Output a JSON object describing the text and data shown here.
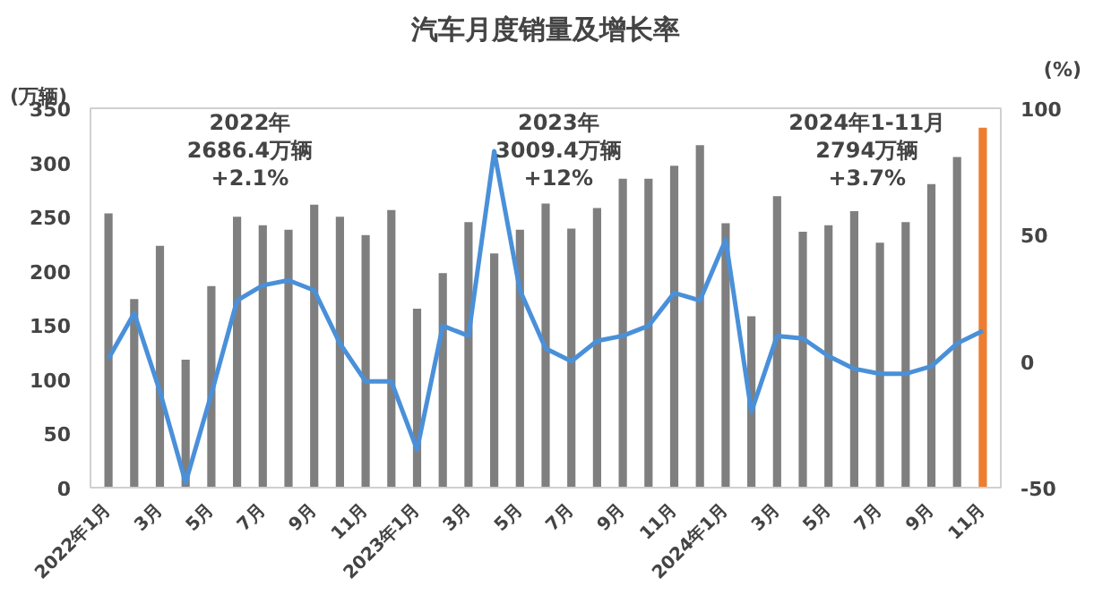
{
  "chart_data": {
    "type": "bar",
    "title": "汽车月度销量及增长率",
    "ylabel": "(万辆)",
    "y2label": "(%)",
    "categories": [
      "2022年1月",
      null,
      "3月",
      null,
      "5月",
      null,
      "7月",
      null,
      "9月",
      null,
      "11月",
      null,
      "2023年1月",
      null,
      "3月",
      null,
      "5月",
      null,
      "7月",
      null,
      "9月",
      null,
      "11月",
      null,
      "2024年1月",
      null,
      "3月",
      null,
      "5月",
      null,
      "7月",
      null,
      "9月",
      null,
      "11月"
    ],
    "series": [
      {
        "color": "#7f7f7f",
        "colors": [
          "#7f7f7f",
          "#7f7f7f",
          "#7f7f7f",
          "#7f7f7f",
          "#7f7f7f",
          "#7f7f7f",
          "#7f7f7f",
          "#7f7f7f",
          "#7f7f7f",
          "#7f7f7f",
          "#7f7f7f",
          "#7f7f7f",
          "#7f7f7f",
          "#7f7f7f",
          "#7f7f7f",
          "#7f7f7f",
          "#7f7f7f",
          "#7f7f7f",
          "#7f7f7f",
          "#7f7f7f",
          "#7f7f7f",
          "#7f7f7f",
          "#7f7f7f",
          "#7f7f7f",
          "#7f7f7f",
          "#7f7f7f",
          "#7f7f7f",
          "#7f7f7f",
          "#7f7f7f",
          "#7f7f7f",
          "#7f7f7f",
          "#7f7f7f",
          "#7f7f7f",
          "#7f7f7f",
          "#ed7d31"
        ],
        "values": [
          253,
          174,
          223,
          118,
          186,
          250,
          242,
          238,
          261,
          250,
          233,
          256,
          165,
          198,
          245,
          216,
          238,
          262,
          239,
          258,
          285,
          285,
          297,
          316,
          244,
          158,
          269,
          236,
          242,
          255,
          226,
          245,
          280,
          305,
          332
        ]
      },
      {
        "type": "line",
        "axis": "y2",
        "color": "#4a90d9",
        "values": [
          1,
          19,
          -12,
          -48,
          -13,
          24,
          30,
          32,
          28,
          7,
          -8,
          -8,
          -35,
          14,
          10,
          83,
          28,
          5,
          0,
          8,
          10,
          14,
          27,
          24,
          48,
          -20,
          10,
          9,
          2,
          -3,
          -5,
          -5,
          -2,
          7,
          12
        ]
      }
    ],
    "ylim": [
      0,
      350
    ],
    "yticks": [
      0,
      50,
      100,
      150,
      200,
      250,
      300,
      350
    ],
    "y2lim": [
      -50,
      100
    ],
    "y2ticks": [
      -50,
      0,
      50,
      100
    ],
    "grid": false,
    "marker": "none",
    "line_style": "solid",
    "annotations": [
      "2022年\n2686.4万辆\n+2.1%",
      "2023年\n3009.4万辆\n+12%",
      "2024年1-11月\n2794万辆\n+3.7%"
    ]
  }
}
